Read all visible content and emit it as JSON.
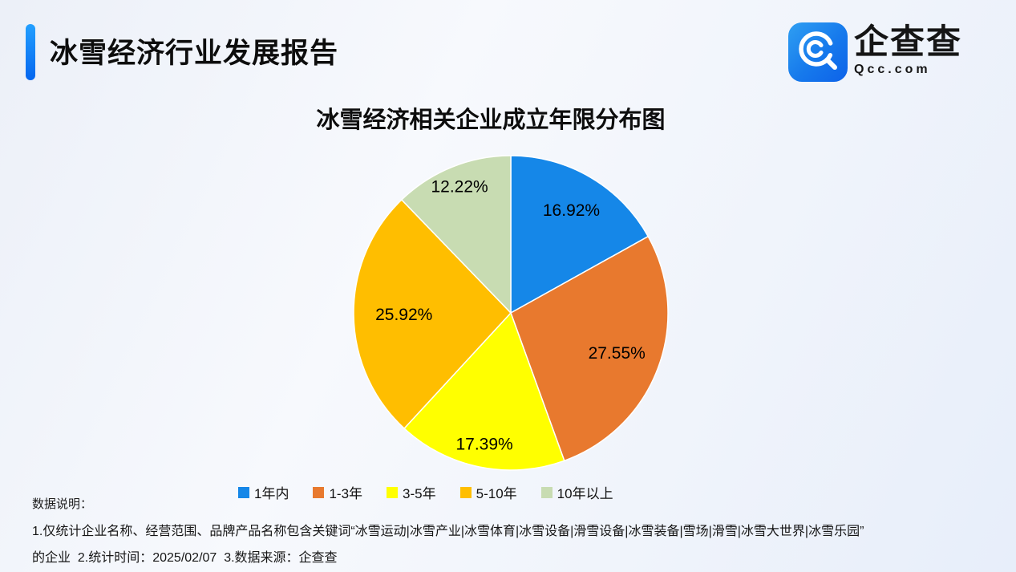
{
  "header": {
    "title": "冰雪经济行业发展报告",
    "accent_color": "#0f6ef0",
    "logo": {
      "name": "企查查",
      "domain": "Qcc.com",
      "icon": "qcc-magnifier-icon",
      "icon_color": "#1679ec"
    }
  },
  "chart_data": {
    "type": "pie",
    "title": "冰雪经济相关企业成立年限分布图",
    "categories": [
      "1年内",
      "1-3年",
      "3-5年",
      "5-10年",
      "10年以上"
    ],
    "values": [
      16.92,
      27.55,
      17.39,
      25.92,
      12.22
    ],
    "labels": [
      "16.92%",
      "27.55%",
      "17.39%",
      "25.92%",
      "12.22%"
    ],
    "colors": [
      "#1587e8",
      "#e8792e",
      "#ffff00",
      "#ffbe00",
      "#c8dcb2"
    ],
    "start_angle_deg": 0,
    "direction": "clockwise",
    "legend_position": "bottom",
    "slice_border_color": "#ffffff",
    "label_radius_fractions": [
      0.76,
      0.72,
      0.85,
      0.68,
      0.87
    ]
  },
  "notes": {
    "label": "数据说明：",
    "line1": "1.仅统计企业名称、经营范围、品牌产品名称包含关键词“冰雪运动|冰雪产业|冰雪体育|冰雪设备|滑雪设备|冰雪装备|雪场|滑雪|冰雪大世界|冰雪乐园”",
    "line2": "的企业  2.统计时间：2025/02/07  3.数据来源：企查查"
  }
}
